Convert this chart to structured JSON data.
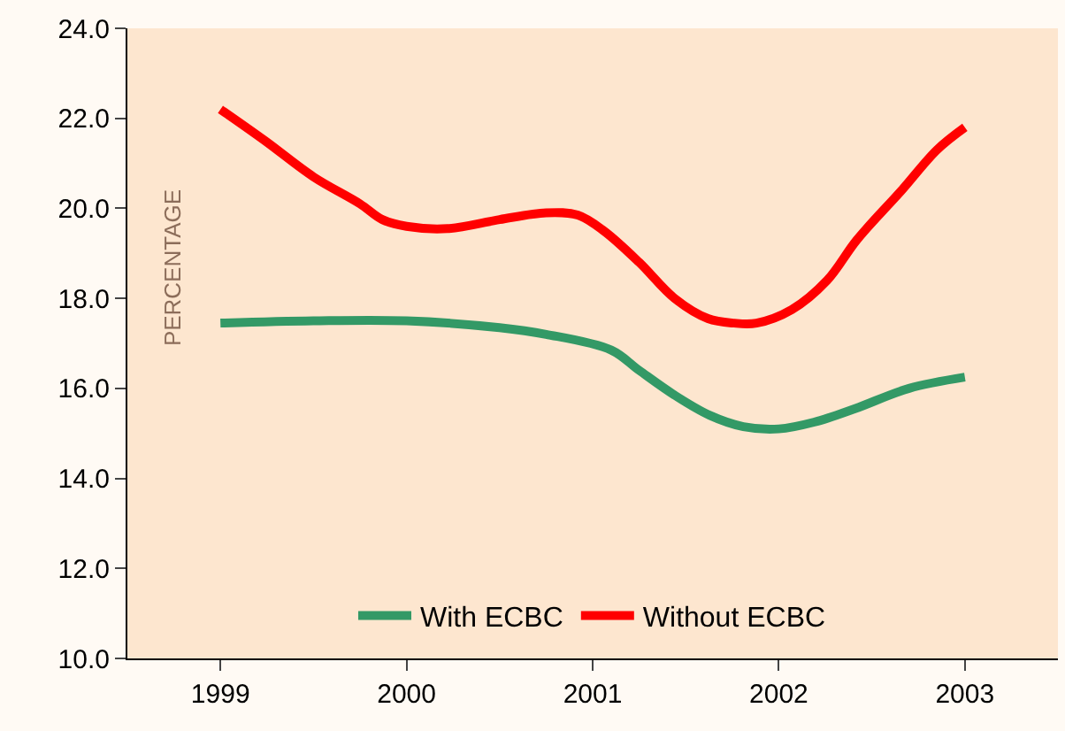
{
  "chart_data": {
    "type": "line",
    "ylabel": "PERCENTAGE",
    "xlim": [
      1998.5,
      2003.5
    ],
    "xticks": [
      1999,
      2000,
      2001,
      2002,
      2003
    ],
    "ylim": [
      10,
      24
    ],
    "yticks": [
      {
        "value": 10,
        "label": "10.0"
      },
      {
        "value": 12,
        "label": "12.0"
      },
      {
        "value": 14,
        "label": "14.0"
      },
      {
        "value": 16,
        "label": "16.0"
      },
      {
        "value": 18,
        "label": "18.0"
      },
      {
        "value": 20,
        "label": "20.0"
      },
      {
        "value": 22,
        "label": "22.0"
      },
      {
        "value": 24,
        "label": "24.0"
      }
    ],
    "grid": false,
    "legend": "bottom",
    "marker": "none",
    "line_style": "solid",
    "series": [
      {
        "name": "With ECBC",
        "color": "#339966",
        "x": [
          1999,
          1999.5,
          2000,
          2000.5,
          2000.75,
          2001.1,
          2001.25,
          2001.44,
          2001.63,
          2001.81,
          2002,
          2002.19,
          2002.41,
          2002.7,
          2003
        ],
        "values": [
          17.45,
          17.5,
          17.5,
          17.35,
          17.2,
          16.85,
          16.4,
          15.85,
          15.4,
          15.15,
          15.1,
          15.25,
          15.55,
          16.0,
          16.25
        ]
      },
      {
        "name": "Without ECBC",
        "color": "#ff0000",
        "x": [
          1999,
          1999.24,
          1999.5,
          1999.75,
          1999.87,
          2000,
          2000.22,
          2000.5,
          2000.75,
          2000.92,
          2001.06,
          2001.25,
          2001.44,
          2001.62,
          2001.76,
          2001.88,
          2002.07,
          2002.26,
          2002.42,
          2002.66,
          2002.85,
          2003
        ],
        "values": [
          22.2,
          21.5,
          20.7,
          20.1,
          19.75,
          19.6,
          19.55,
          19.75,
          19.9,
          19.85,
          19.5,
          18.8,
          18.0,
          17.55,
          17.45,
          17.45,
          17.75,
          18.4,
          19.3,
          20.4,
          21.3,
          21.8
        ]
      }
    ]
  }
}
